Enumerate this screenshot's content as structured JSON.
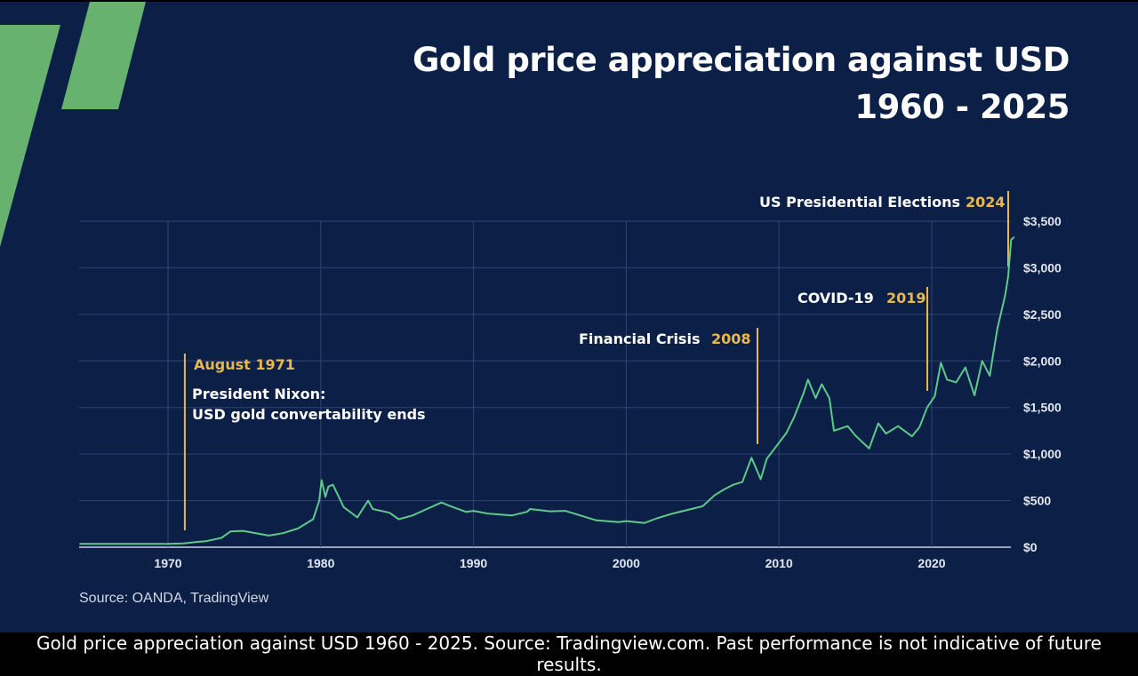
{
  "title_line1": "Gold price appreciation against USD",
  "title_line2": "1960 - 2025",
  "source": "Source: OANDA, TradingView",
  "caption": "Gold price appreciation against USD 1960 - 2025. Source: Tradingview.com. Past performance is not indicative of future results.",
  "colors": {
    "background": "#0b1f47",
    "line": "#5fc98a",
    "annotation": "#e8b84b",
    "logo": "#67b26f",
    "grid": "#2f4470"
  },
  "chart_data": {
    "type": "line",
    "title": "Gold price appreciation against USD 1960 - 2025",
    "xlabel": "",
    "ylabel": "",
    "xlim": [
      1964.2,
      2025.6
    ],
    "ylim": [
      0,
      3500
    ],
    "grid": true,
    "y_axis_side": "right",
    "x_ticks": [
      1970,
      1980,
      1990,
      2000,
      2010,
      2020
    ],
    "x_tick_labels": [
      "1970",
      "1980",
      "1990",
      "2000",
      "2010",
      "2020"
    ],
    "y_ticks": [
      0,
      500,
      1000,
      1500,
      2000,
      2500,
      3000,
      3500
    ],
    "y_tick_labels": [
      "$0",
      "$500",
      "$1,000",
      "$1,500",
      "$2,000",
      "$2,500",
      "$3,000",
      "$3,500"
    ],
    "series": [
      {
        "x": [
          1964.2,
          1968,
          1970,
          1971,
          1972,
          1972.5,
          1973.5,
          1974.1,
          1974.9,
          1976.6,
          1977.5,
          1978.5,
          1979.5,
          1979.9,
          1980.05,
          1980.3,
          1980.5,
          1980.8,
          1981.5,
          1982.4,
          1982.9,
          1983.1,
          1983.4,
          1984.5,
          1985.1,
          1986,
          1986.8,
          1987.9,
          1988.5,
          1989.5,
          1990,
          1991,
          1992.5,
          1993.5,
          1993.7,
          1995,
          1996,
          1997,
          1998,
          1999.5,
          2000,
          2001.2,
          2002,
          2003,
          2004,
          2005,
          2005.8,
          2006.4,
          2007,
          2007.6,
          2008.2,
          2008.8,
          2009.2,
          2009.9,
          2010.5,
          2011,
          2011.6,
          2011.9,
          2012.4,
          2012.8,
          2013.3,
          2013.6,
          2014.5,
          2015,
          2015.9,
          2016.5,
          2017,
          2017.8,
          2018.7,
          2019.2,
          2019.7,
          2020.2,
          2020.6,
          2021,
          2021.6,
          2022.2,
          2022.8,
          2023.3,
          2023.8,
          2024,
          2024.3,
          2024.8,
          2025.0,
          2025.2,
          2025.4
        ],
        "y": [
          35,
          36,
          36,
          40,
          58,
          65,
          100,
          170,
          175,
          125,
          150,
          200,
          300,
          500,
          720,
          540,
          650,
          670,
          430,
          320,
          450,
          500,
          410,
          370,
          300,
          340,
          400,
          480,
          440,
          380,
          390,
          360,
          340,
          380,
          410,
          385,
          390,
          340,
          290,
          270,
          280,
          260,
          310,
          360,
          400,
          440,
          560,
          620,
          670,
          700,
          960,
          730,
          950,
          1100,
          1230,
          1400,
          1650,
          1800,
          1600,
          1750,
          1600,
          1250,
          1300,
          1200,
          1060,
          1330,
          1220,
          1300,
          1190,
          1290,
          1500,
          1620,
          1980,
          1800,
          1770,
          1930,
          1630,
          2000,
          1840,
          2050,
          2350,
          2700,
          2900,
          3300,
          3330
        ]
      }
    ],
    "annotations": [
      {
        "year_label": "August 1971",
        "text_lines": [
          "President Nixon:",
          "USD gold convertability ends"
        ],
        "x": 1971.1
      },
      {
        "label": "Financial Crisis",
        "year_label": "2008",
        "x": 2008.8
      },
      {
        "label": "COVID-19",
        "year_label": "2019",
        "x": 2019.9
      },
      {
        "label": "US Presidential Elections",
        "year_label": "2024",
        "x": 2025.0
      }
    ]
  }
}
